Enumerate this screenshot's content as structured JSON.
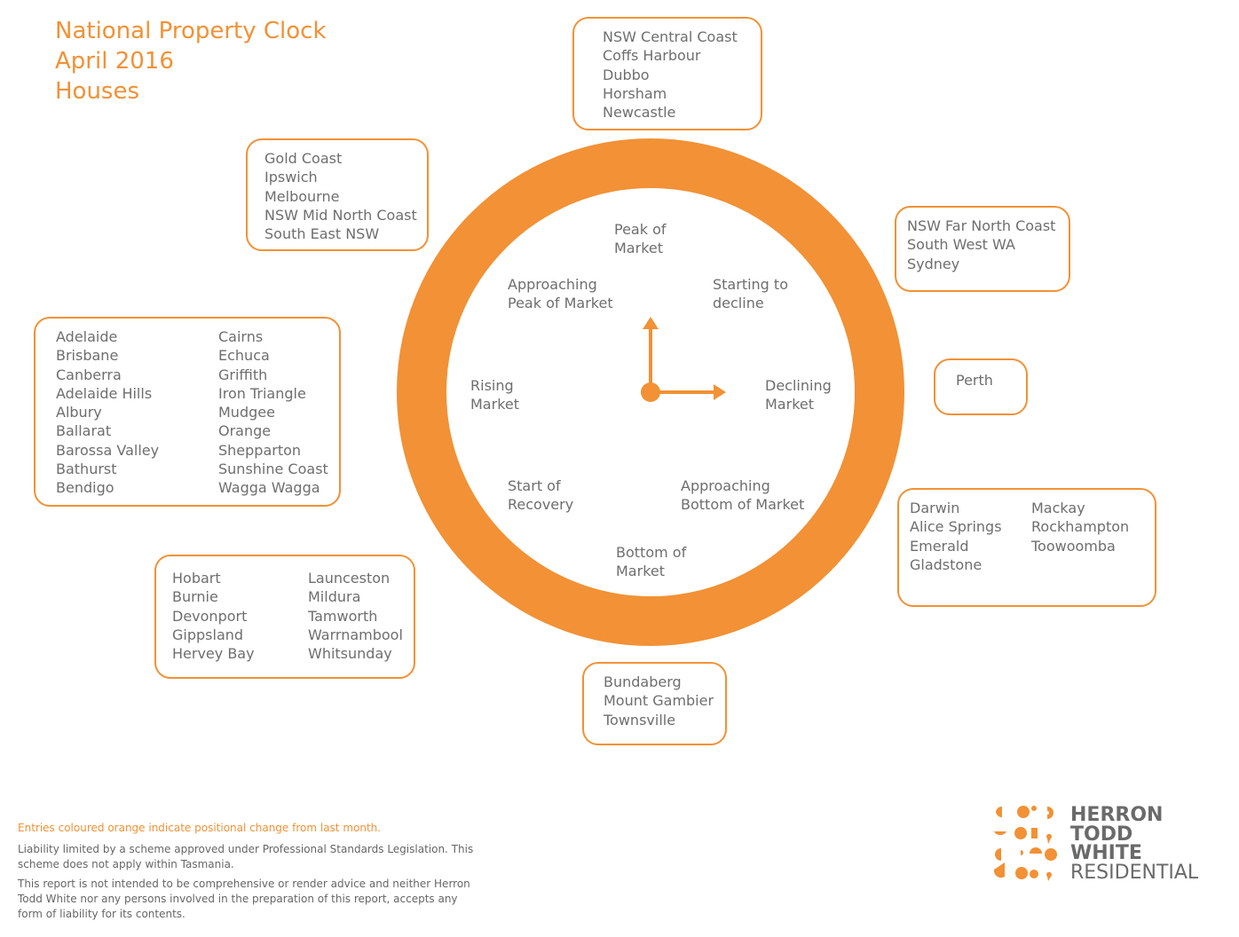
{
  "title": {
    "line1": "National Property Clock",
    "line2": "April 2016",
    "line3": "Houses"
  },
  "clock": {
    "positions": [
      {
        "id": "peak",
        "line1": "Peak of",
        "line2": "Market"
      },
      {
        "id": "starting-decline",
        "line1": "Starting to",
        "line2": "decline"
      },
      {
        "id": "declining",
        "line1": "Declining",
        "line2": "Market"
      },
      {
        "id": "approaching-bottom",
        "line1": "Approaching",
        "line2": "Bottom of Market"
      },
      {
        "id": "bottom",
        "line1": "Bottom of",
        "line2": "Market"
      },
      {
        "id": "start-recovery",
        "line1": "Start of",
        "line2": "Recovery"
      },
      {
        "id": "rising",
        "line1": "Rising",
        "line2": "Market"
      },
      {
        "id": "approaching-peak",
        "line1": "Approaching",
        "line2": "Peak of Market"
      }
    ],
    "hand_time": "3 o'clock",
    "ring_color": "#f29135"
  },
  "groups": {
    "peak": {
      "col1": [
        "NSW Central Coast",
        "Coffs Harbour",
        "Dubbo",
        "Horsham",
        "Newcastle"
      ]
    },
    "starting_decline": {
      "col1": [
        "NSW Far North Coast",
        "South West WA",
        "Sydney"
      ]
    },
    "declining": {
      "col1": [
        "Perth"
      ]
    },
    "approaching_bottom": {
      "col1": [
        "Darwin",
        "Alice Springs",
        "Emerald",
        "Gladstone"
      ],
      "col2": [
        "Mackay",
        "Rockhampton",
        "Toowoomba"
      ]
    },
    "bottom": {
      "col1": [
        "Bundaberg",
        "Mount Gambier",
        "Townsville"
      ]
    },
    "start_recovery": {
      "col1": [
        "Hobart",
        "Burnie",
        "Devonport",
        "Gippsland",
        "Hervey Bay"
      ],
      "col2": [
        "Launceston",
        "Mildura",
        "Tamworth",
        "Warrnambool",
        "Whitsunday"
      ]
    },
    "rising": {
      "col1": [
        "Adelaide",
        "Brisbane",
        "Canberra",
        "Adelaide Hills",
        "Albury",
        "Ballarat",
        "Barossa Valley",
        "Bathurst",
        "Bendigo"
      ],
      "col2": [
        "Cairns",
        "Echuca",
        "Griffith",
        "Iron Triangle",
        "Mudgee",
        "Orange",
        "Shepparton",
        "Sunshine Coast",
        "Wagga Wagga"
      ]
    },
    "approaching_peak": {
      "col1": [
        "Gold Coast",
        "Ipswich",
        "Melbourne",
        "NSW Mid North Coast",
        "South East NSW"
      ]
    }
  },
  "footer": {
    "note": "Entries coloured orange indicate positional change from last month.",
    "liability": "Liability limited by a scheme approved under Professional Standards Legislation. This scheme does not apply within Tasmania.",
    "disclaimer": "This report is not intended to be comprehensive or render advice and neither Herron Todd White nor any persons involved in the preparation of this report, accepts any form of liability for its contents."
  },
  "logo": {
    "line1": "HERRON",
    "line2": "TODD",
    "line3": "WHITE",
    "line4": "RESIDENTIAL",
    "color": "#f29135"
  }
}
